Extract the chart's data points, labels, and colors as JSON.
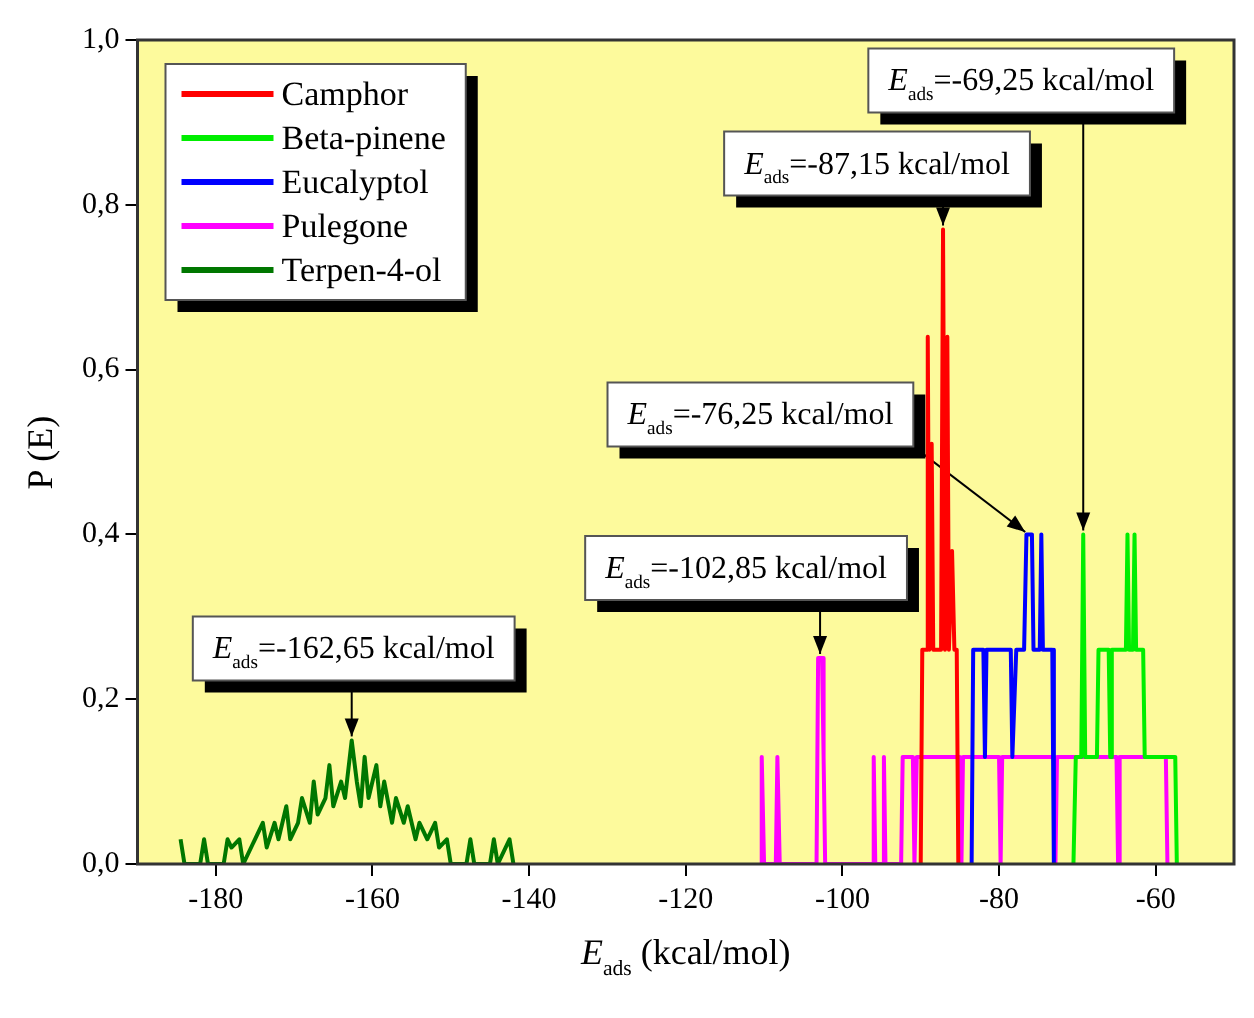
{
  "chart_data": {
    "type": "line",
    "xlabel": "E$_{ads}$ (kcal/mol)",
    "ylabel": "P (E)",
    "xlim": [
      -190,
      -50
    ],
    "xticks": [
      -180,
      -160,
      -140,
      -120,
      -100,
      -80,
      -60
    ],
    "ylim": [
      0,
      1
    ],
    "yticks": [
      {
        "value": 0,
        "label": "0,0"
      },
      {
        "value": 0.2,
        "label": "0,2"
      },
      {
        "value": 0.4,
        "label": "0,4"
      },
      {
        "value": 0.6,
        "label": "0,6"
      },
      {
        "value": 0.8,
        "label": "0,8"
      },
      {
        "value": 1,
        "label": "1,0"
      }
    ],
    "grid": false,
    "legend": "top left",
    "marker": "none",
    "line_style": "solid",
    "series": [
      {
        "name": "Camphor",
        "color": "#ff0000",
        "x": [
          -90,
          -89.8,
          -89.3,
          -89.1,
          -88.9,
          -88.6,
          -88.4,
          -87.4,
          -87.15,
          -86.9,
          -86.6,
          -86.4,
          -86,
          -85.7,
          -85.4,
          -85.2
        ],
        "values": [
          0,
          0.26,
          0.26,
          0.64,
          0.26,
          0.51,
          0.26,
          0.26,
          0.77,
          0.26,
          0.64,
          0.26,
          0.38,
          0.26,
          0.26,
          0
        ]
      },
      {
        "name": "Beta-pinene",
        "color": "#00ee00",
        "x": [
          -70.5,
          -70.2,
          -69.5,
          -69.25,
          -69,
          -67.5,
          -67.3,
          -66,
          -65.8,
          -65.6,
          -63.8,
          -63.6,
          -63.4,
          -62.9,
          -62.7,
          -62.5,
          -61.6,
          -61.4,
          -57.5,
          -57.3
        ],
        "values": [
          0,
          0.13,
          0.13,
          0.4,
          0.13,
          0.13,
          0.26,
          0.26,
          0.13,
          0.26,
          0.26,
          0.4,
          0.26,
          0.26,
          0.4,
          0.26,
          0.26,
          0.13,
          0.13,
          0
        ]
      },
      {
        "name": "Eucalyptol",
        "color": "#0000ff",
        "x": [
          -83.5,
          -83.3,
          -82,
          -81.8,
          -81.6,
          -78.5,
          -78.3,
          -77.8,
          -76.8,
          -76.5,
          -75.8,
          -75.6,
          -74.8,
          -74.6,
          -74.4,
          -73.2,
          -73
        ],
        "values": [
          0,
          0.26,
          0.26,
          0.13,
          0.26,
          0.26,
          0.13,
          0.26,
          0.26,
          0.4,
          0.4,
          0.26,
          0.26,
          0.4,
          0.26,
          0.26,
          0
        ]
      },
      {
        "name": "Pulegone",
        "color": "#ff00ff",
        "x": [
          -110.5,
          -110.3,
          -110,
          -108.5,
          -108.3,
          -108,
          -103.3,
          -103.1,
          -102.6,
          -102.4,
          -102.2,
          -96.2,
          -96,
          -95.8,
          -94.9,
          -94.7,
          -94.5,
          -92.5,
          -92.3,
          -91,
          -90.8,
          -90.5,
          -88,
          -85,
          -84.8,
          -84.6,
          -80,
          -79.8,
          -79.6,
          -75,
          -73,
          -72.8,
          -72.6,
          -66,
          -65,
          -64.8,
          -64.6,
          -58.7,
          -58.5
        ],
        "values": [
          0,
          0.13,
          0,
          0,
          0.13,
          0,
          0,
          0.25,
          0.25,
          0.13,
          0,
          0,
          0.13,
          0,
          0,
          0.13,
          0,
          0,
          0.13,
          0.13,
          0,
          0.13,
          0.13,
          0.13,
          0,
          0.13,
          0.13,
          0,
          0.13,
          0.13,
          0.13,
          0,
          0.13,
          0.13,
          0.13,
          0,
          0.13,
          0.13,
          0
        ]
      },
      {
        "name": "Terpen-4-ol",
        "color": "#007700",
        "x": [
          -184.5,
          -184,
          -182,
          -181.5,
          -181,
          -179,
          -178.5,
          -178,
          -177,
          -176.5,
          -175,
          -174,
          -173.5,
          -172.5,
          -172,
          -171,
          -170.5,
          -169.5,
          -169,
          -168,
          -167.5,
          -167,
          -166,
          -165.5,
          -165,
          -164,
          -163.5,
          -162.65,
          -162,
          -161.5,
          -161,
          -160.5,
          -159.5,
          -159,
          -158.5,
          -157.5,
          -157,
          -156,
          -155.5,
          -154.5,
          -154,
          -153,
          -152,
          -151.5,
          -150.5,
          -150,
          -148,
          -147.5,
          -147,
          -145,
          -144.5,
          -144,
          -142.5,
          -142
        ],
        "values": [
          0.03,
          0,
          0,
          0.03,
          0,
          0,
          0.03,
          0.02,
          0.03,
          0,
          0.03,
          0.05,
          0.02,
          0.05,
          0.03,
          0.07,
          0.03,
          0.05,
          0.08,
          0.05,
          0.1,
          0.06,
          0.08,
          0.12,
          0.07,
          0.1,
          0.08,
          0.15,
          0.1,
          0.07,
          0.13,
          0.08,
          0.12,
          0.07,
          0.1,
          0.05,
          0.08,
          0.05,
          0.07,
          0.03,
          0.05,
          0.03,
          0.05,
          0.02,
          0.03,
          0,
          0,
          0.03,
          0,
          0,
          0.03,
          0,
          0.03,
          0
        ]
      }
    ],
    "annotations": [
      {
        "text": "E$_{ads}$=-87,15 kcal/mol",
        "x": -87.15,
        "y": 0.77
      },
      {
        "text": "E$_{ads}$=-69,25 kcal/mol",
        "x": -69.25,
        "y": 0.4
      },
      {
        "text": "E$_{ads}$=-76,25 kcal/mol",
        "x": -76.25,
        "y": 0.4
      },
      {
        "text": "E$_{ads}$=-102,85 kcal/mol",
        "x": -102.85,
        "y": 0.25
      },
      {
        "text": "E$_{ads}$=-162,65 kcal/mol",
        "x": -162.65,
        "y": 0.15
      }
    ]
  }
}
